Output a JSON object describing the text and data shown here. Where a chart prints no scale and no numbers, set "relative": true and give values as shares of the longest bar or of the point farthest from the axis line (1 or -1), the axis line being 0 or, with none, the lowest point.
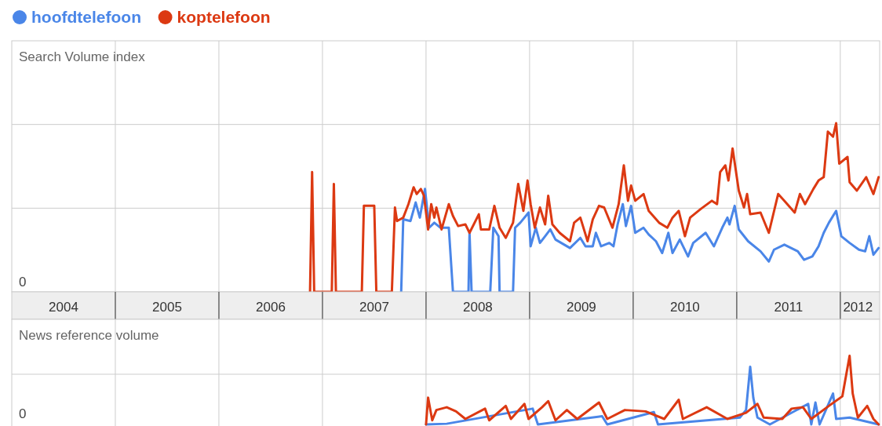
{
  "chart_data": [
    {
      "type": "line",
      "relative": true,
      "ylabel": "Search Volume index",
      "legend": "top left",
      "grid": true,
      "tick_labels": "x",
      "xlim": [
        2004,
        2012.38
      ],
      "xticks": [
        {
          "value": 2004.5,
          "label": "2004"
        },
        {
          "value": 2005,
          "label": null
        },
        {
          "value": 2005.5,
          "label": "2005"
        },
        {
          "value": 2006,
          "label": null
        },
        {
          "value": 2006.5,
          "label": "2006"
        },
        {
          "value": 2007,
          "label": null
        },
        {
          "value": 2007.5,
          "label": "2007"
        },
        {
          "value": 2008,
          "label": null
        },
        {
          "value": 2008.5,
          "label": "2008"
        },
        {
          "value": 2009,
          "label": null
        },
        {
          "value": 2009.5,
          "label": "2009"
        },
        {
          "value": 2010,
          "label": null
        },
        {
          "value": 2010.5,
          "label": "2010"
        },
        {
          "value": 2011,
          "label": null
        },
        {
          "value": 2011.5,
          "label": "2011"
        },
        {
          "value": 2012,
          "label": null
        },
        {
          "value": 2012.17,
          "label": "2012"
        }
      ],
      "annotations": [
        "0"
      ],
      "series": [
        {
          "name": "hoofdtelefoon",
          "color": "#4a86e8",
          "x": [
            2007.76,
            2007.78,
            2007.85,
            2007.9,
            2007.94,
            2007.99,
            2008.03,
            2008.08,
            2008.14,
            2008.22,
            2008.26,
            2008.41,
            2008.42,
            2008.44,
            2008.62,
            2008.65,
            2008.7,
            2008.71,
            2008.84,
            2008.86,
            2008.91,
            2008.99,
            2009.01,
            2009.06,
            2009.1,
            2009.15,
            2009.2,
            2009.25,
            2009.39,
            2009.49,
            2009.54,
            2009.61,
            2009.64,
            2009.69,
            2009.77,
            2009.81,
            2009.85,
            2009.9,
            2009.93,
            2009.98,
            2010.02,
            2010.1,
            2010.15,
            2010.22,
            2010.28,
            2010.34,
            2010.38,
            2010.45,
            2010.53,
            2010.58,
            2010.7,
            2010.78,
            2010.86,
            2010.91,
            2010.93,
            2010.98,
            2011.02,
            2011.11,
            2011.23,
            2011.31,
            2011.36,
            2011.46,
            2011.59,
            2011.65,
            2011.73,
            2011.79,
            2011.84,
            2011.89,
            2011.96,
            2012.01,
            2012.09,
            2012.18,
            2012.24,
            2012.28,
            2012.32,
            2012.37
          ],
          "values": [
            0,
            0.43,
            0.42,
            0.53,
            0.44,
            0.61,
            0.38,
            0.41,
            0.38,
            0.38,
            0,
            0,
            0.35,
            0,
            0,
            0.38,
            0.33,
            0,
            0,
            0.38,
            0.41,
            0.47,
            0.27,
            0.38,
            0.29,
            0.33,
            0.37,
            0.31,
            0.26,
            0.32,
            0.27,
            0.27,
            0.35,
            0.27,
            0.29,
            0.27,
            0.4,
            0.52,
            0.39,
            0.51,
            0.35,
            0.38,
            0.34,
            0.3,
            0.23,
            0.35,
            0.23,
            0.31,
            0.21,
            0.29,
            0.35,
            0.27,
            0.38,
            0.44,
            0.4,
            0.51,
            0.37,
            0.3,
            0.24,
            0.18,
            0.25,
            0.28,
            0.24,
            0.19,
            0.21,
            0.27,
            0.35,
            0.41,
            0.48,
            0.33,
            0.29,
            0.25,
            0.24,
            0.33,
            0.22,
            0.26
          ]
        },
        {
          "name": "koptelefoon",
          "color": "#dc3912",
          "x": [
            2006.88,
            2006.9,
            2006.92,
            2007.09,
            2007.11,
            2007.13,
            2007.38,
            2007.4,
            2007.5,
            2007.52,
            2007.67,
            2007.7,
            2007.72,
            2007.78,
            2007.83,
            2007.88,
            2007.91,
            2007.95,
            2007.98,
            2008.02,
            2008.05,
            2008.08,
            2008.1,
            2008.15,
            2008.22,
            2008.26,
            2008.31,
            2008.38,
            2008.42,
            2008.51,
            2008.53,
            2008.61,
            2008.66,
            2008.71,
            2008.77,
            2008.84,
            2008.89,
            2008.94,
            2008.98,
            2009.01,
            2009.05,
            2009.1,
            2009.15,
            2009.18,
            2009.22,
            2009.29,
            2009.39,
            2009.43,
            2009.49,
            2009.56,
            2009.61,
            2009.67,
            2009.72,
            2009.8,
            2009.86,
            2009.91,
            2009.95,
            2009.98,
            2010.02,
            2010.1,
            2010.15,
            2010.25,
            2010.33,
            2010.38,
            2010.44,
            2010.5,
            2010.55,
            2010.65,
            2010.76,
            2010.81,
            2010.84,
            2010.89,
            2010.92,
            2010.96,
            2011.02,
            2011.07,
            2011.1,
            2011.13,
            2011.23,
            2011.31,
            2011.4,
            2011.46,
            2011.56,
            2011.61,
            2011.66,
            2011.74,
            2011.79,
            2011.84,
            2011.88,
            2011.93,
            2011.96,
            2011.99,
            2012.07,
            2012.09,
            2012.16,
            2012.25,
            2012.32,
            2012.37
          ],
          "values": [
            0,
            0.71,
            0,
            0,
            0.64,
            0,
            0,
            0.51,
            0.51,
            0,
            0,
            0.5,
            0.42,
            0.44,
            0.52,
            0.62,
            0.58,
            0.61,
            0.57,
            0.37,
            0.52,
            0.44,
            0.5,
            0.37,
            0.52,
            0.45,
            0.39,
            0.4,
            0.35,
            0.46,
            0.37,
            0.37,
            0.51,
            0.38,
            0.32,
            0.41,
            0.64,
            0.48,
            0.66,
            0.52,
            0.38,
            0.5,
            0.4,
            0.57,
            0.4,
            0.35,
            0.3,
            0.41,
            0.44,
            0.3,
            0.43,
            0.51,
            0.5,
            0.38,
            0.52,
            0.75,
            0.54,
            0.63,
            0.54,
            0.58,
            0.48,
            0.41,
            0.38,
            0.44,
            0.48,
            0.33,
            0.44,
            0.49,
            0.54,
            0.52,
            0.71,
            0.75,
            0.66,
            0.85,
            0.6,
            0.5,
            0.58,
            0.46,
            0.47,
            0.35,
            0.58,
            0.54,
            0.47,
            0.58,
            0.52,
            0.61,
            0.66,
            0.68,
            0.95,
            0.92,
            1.0,
            0.76,
            0.8,
            0.65,
            0.6,
            0.68,
            0.58,
            0.68
          ]
        }
      ]
    },
    {
      "type": "line",
      "relative": true,
      "ylabel": "News reference volume",
      "grid": true,
      "tick_labels": false,
      "xlim": [
        2004,
        2012.38
      ],
      "annotations": [
        "0"
      ],
      "series": [
        {
          "color": "#4a86e8",
          "x": [
            2008.0,
            2008.2,
            2009.03,
            2009.08,
            2009.7,
            2009.75,
            2010.2,
            2010.24,
            2011.03,
            2011.09,
            2011.13,
            2011.16,
            2011.2,
            2011.32,
            2011.69,
            2011.72,
            2011.76,
            2011.8,
            2011.93,
            2011.96,
            2012.09,
            2012.37
          ],
          "values": [
            0,
            0.01,
            0.23,
            0,
            0.12,
            0,
            0.18,
            0,
            0.1,
            0.21,
            0.84,
            0.39,
            0.1,
            0,
            0.3,
            0,
            0.32,
            0,
            0.45,
            0.08,
            0.1,
            0
          ]
        },
        {
          "color": "#dc3912",
          "x": [
            2008.0,
            2008.02,
            2008.06,
            2008.1,
            2008.2,
            2008.29,
            2008.38,
            2008.57,
            2008.61,
            2008.77,
            2008.82,
            2008.95,
            2008.99,
            2009.12,
            2009.18,
            2009.25,
            2009.36,
            2009.46,
            2009.67,
            2009.75,
            2009.92,
            2010.12,
            2010.3,
            2010.44,
            2010.48,
            2010.71,
            2010.91,
            2011.09,
            2011.2,
            2011.26,
            2011.44,
            2011.53,
            2011.64,
            2011.72,
            2011.89,
            2012.02,
            2012.09,
            2012.12,
            2012.17,
            2012.26,
            2012.32,
            2012.37
          ],
          "values": [
            0,
            0.39,
            0.06,
            0.21,
            0.25,
            0.19,
            0.08,
            0.23,
            0.06,
            0.27,
            0.08,
            0.3,
            0.08,
            0.25,
            0.34,
            0.06,
            0.21,
            0.08,
            0.32,
            0.08,
            0.21,
            0.19,
            0.08,
            0.36,
            0.08,
            0.25,
            0.08,
            0.17,
            0.3,
            0.1,
            0.08,
            0.23,
            0.25,
            0.08,
            0.27,
            0.41,
            1.0,
            0.45,
            0.1,
            0.27,
            0.08,
            0
          ]
        }
      ]
    }
  ]
}
